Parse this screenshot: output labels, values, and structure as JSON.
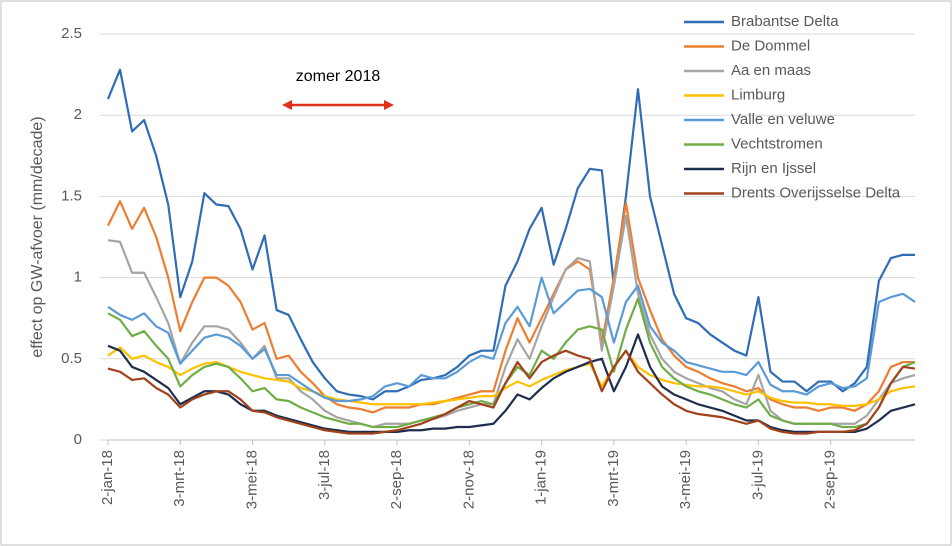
{
  "chart_data": {
    "type": "line",
    "y_label": "effect op GW-afvoer (mm/decade)",
    "annotation": "zomer 2018",
    "ylim": [
      0,
      2.5
    ],
    "yticks": [
      0,
      0.5,
      1,
      1.5,
      2,
      2.5
    ],
    "grid": true,
    "legend": "top-right",
    "categories": [
      "2-jan-18",
      null,
      null,
      null,
      null,
      null,
      "3-mrt-18",
      null,
      null,
      null,
      null,
      null,
      "3-mei-18",
      null,
      null,
      null,
      null,
      null,
      "3-jul-18",
      null,
      null,
      null,
      null,
      null,
      "2-sep-18",
      null,
      null,
      null,
      null,
      null,
      "2-nov-18",
      null,
      null,
      null,
      null,
      null,
      "1-jan-19",
      null,
      null,
      null,
      null,
      null,
      "3-mrt-19",
      null,
      null,
      null,
      null,
      null,
      "3-mei-19",
      null,
      null,
      null,
      null,
      null,
      "3-jul-19",
      null,
      null,
      null,
      null,
      null,
      "2-sep-19",
      null,
      null,
      null,
      null,
      null,
      null,
      null
    ],
    "series": [
      {
        "name": "Brabantse Delta",
        "color": "#2f6db5",
        "values": [
          2.1,
          2.28,
          1.9,
          1.97,
          1.75,
          1.45,
          0.88,
          1.1,
          1.52,
          1.45,
          1.44,
          1.3,
          1.05,
          1.26,
          0.8,
          0.77,
          0.62,
          0.48,
          0.38,
          0.3,
          0.28,
          0.27,
          0.25,
          0.3,
          0.3,
          0.33,
          0.37,
          0.38,
          0.4,
          0.45,
          0.52,
          0.55,
          0.55,
          0.95,
          1.1,
          1.3,
          1.43,
          1.08,
          1.3,
          1.55,
          1.67,
          1.66,
          0.95,
          1.5,
          2.16,
          1.5,
          1.2,
          0.9,
          0.75,
          0.72,
          0.65,
          0.6,
          0.55,
          0.52,
          0.88,
          0.42,
          0.36,
          0.36,
          0.3,
          0.36,
          0.36,
          0.3,
          0.35,
          0.45,
          0.98,
          1.12,
          1.14,
          1.14
        ]
      },
      {
        "name": "De Dommel",
        "color": "#ed7d31",
        "values": [
          1.32,
          1.47,
          1.3,
          1.43,
          1.25,
          1.0,
          0.67,
          0.85,
          1.0,
          1.0,
          0.95,
          0.85,
          0.68,
          0.72,
          0.5,
          0.52,
          0.42,
          0.35,
          0.27,
          0.22,
          0.2,
          0.19,
          0.17,
          0.2,
          0.2,
          0.2,
          0.22,
          0.22,
          0.24,
          0.26,
          0.28,
          0.3,
          0.3,
          0.55,
          0.75,
          0.6,
          0.75,
          0.9,
          1.05,
          1.1,
          1.05,
          0.6,
          1.0,
          1.46,
          1.0,
          0.8,
          0.62,
          0.52,
          0.45,
          0.42,
          0.38,
          0.35,
          0.33,
          0.3,
          0.32,
          0.25,
          0.22,
          0.2,
          0.2,
          0.18,
          0.2,
          0.2,
          0.18,
          0.22,
          0.3,
          0.45,
          0.48,
          0.48
        ]
      },
      {
        "name": "Aa en maas",
        "color": "#a5a5a5",
        "values": [
          1.23,
          1.22,
          1.03,
          1.03,
          0.88,
          0.72,
          0.47,
          0.6,
          0.7,
          0.7,
          0.68,
          0.6,
          0.5,
          0.58,
          0.38,
          0.38,
          0.3,
          0.25,
          0.18,
          0.14,
          0.12,
          0.1,
          0.08,
          0.1,
          0.1,
          0.1,
          0.12,
          0.13,
          0.15,
          0.18,
          0.2,
          0.22,
          0.22,
          0.45,
          0.62,
          0.5,
          0.7,
          0.88,
          1.05,
          1.12,
          1.1,
          0.55,
          0.95,
          1.38,
          0.9,
          0.65,
          0.5,
          0.42,
          0.38,
          0.35,
          0.32,
          0.3,
          0.25,
          0.22,
          0.4,
          0.18,
          0.12,
          0.1,
          0.1,
          0.1,
          0.1,
          0.1,
          0.1,
          0.15,
          0.25,
          0.35,
          0.38,
          0.4
        ]
      },
      {
        "name": "Limburg",
        "color": "#ffc000",
        "values": [
          0.52,
          0.57,
          0.5,
          0.52,
          0.48,
          0.45,
          0.4,
          0.44,
          0.47,
          0.48,
          0.45,
          0.42,
          0.4,
          0.38,
          0.37,
          0.36,
          0.32,
          0.3,
          0.27,
          0.25,
          0.24,
          0.23,
          0.22,
          0.22,
          0.22,
          0.22,
          0.22,
          0.23,
          0.24,
          0.25,
          0.26,
          0.27,
          0.27,
          0.32,
          0.36,
          0.33,
          0.37,
          0.4,
          0.43,
          0.45,
          0.47,
          0.33,
          0.45,
          0.55,
          0.45,
          0.4,
          0.37,
          0.35,
          0.34,
          0.33,
          0.33,
          0.32,
          0.3,
          0.28,
          0.3,
          0.26,
          0.24,
          0.23,
          0.23,
          0.22,
          0.22,
          0.21,
          0.21,
          0.22,
          0.25,
          0.3,
          0.32,
          0.33
        ]
      },
      {
        "name": "Valle en veluwe",
        "color": "#5b9bd5",
        "values": [
          0.82,
          0.77,
          0.74,
          0.78,
          0.7,
          0.66,
          0.47,
          0.55,
          0.63,
          0.65,
          0.63,
          0.58,
          0.5,
          0.56,
          0.4,
          0.4,
          0.35,
          0.3,
          0.26,
          0.24,
          0.24,
          0.25,
          0.27,
          0.33,
          0.35,
          0.33,
          0.4,
          0.38,
          0.38,
          0.42,
          0.48,
          0.52,
          0.5,
          0.72,
          0.82,
          0.7,
          1.0,
          0.78,
          0.85,
          0.92,
          0.93,
          0.88,
          0.6,
          0.85,
          0.95,
          0.7,
          0.6,
          0.55,
          0.48,
          0.46,
          0.44,
          0.42,
          0.42,
          0.4,
          0.48,
          0.34,
          0.3,
          0.3,
          0.28,
          0.33,
          0.35,
          0.32,
          0.33,
          0.38,
          0.85,
          0.88,
          0.9,
          0.85
        ]
      },
      {
        "name": "Vechtstromen",
        "color": "#70ad47",
        "values": [
          0.78,
          0.74,
          0.64,
          0.67,
          0.58,
          0.5,
          0.33,
          0.4,
          0.45,
          0.47,
          0.45,
          0.38,
          0.3,
          0.32,
          0.25,
          0.24,
          0.2,
          0.17,
          0.14,
          0.12,
          0.1,
          0.1,
          0.08,
          0.08,
          0.08,
          0.1,
          0.12,
          0.14,
          0.16,
          0.2,
          0.22,
          0.24,
          0.22,
          0.35,
          0.45,
          0.4,
          0.55,
          0.5,
          0.6,
          0.68,
          0.7,
          0.68,
          0.42,
          0.68,
          0.87,
          0.6,
          0.45,
          0.38,
          0.33,
          0.3,
          0.28,
          0.25,
          0.22,
          0.2,
          0.25,
          0.15,
          0.12,
          0.1,
          0.1,
          0.1,
          0.1,
          0.08,
          0.08,
          0.1,
          0.2,
          0.35,
          0.45,
          0.48
        ]
      },
      {
        "name": "Rijn en Ijssel",
        "color": "#1f2d4e",
        "values": [
          0.58,
          0.55,
          0.45,
          0.42,
          0.37,
          0.32,
          0.22,
          0.26,
          0.3,
          0.3,
          0.28,
          0.22,
          0.18,
          0.18,
          0.15,
          0.13,
          0.11,
          0.09,
          0.07,
          0.06,
          0.05,
          0.05,
          0.05,
          0.05,
          0.05,
          0.06,
          0.06,
          0.07,
          0.07,
          0.08,
          0.08,
          0.09,
          0.1,
          0.18,
          0.28,
          0.25,
          0.32,
          0.38,
          0.42,
          0.45,
          0.48,
          0.5,
          0.3,
          0.45,
          0.65,
          0.45,
          0.33,
          0.28,
          0.25,
          0.22,
          0.2,
          0.18,
          0.15,
          0.12,
          0.12,
          0.08,
          0.06,
          0.05,
          0.05,
          0.05,
          0.05,
          0.05,
          0.05,
          0.07,
          0.12,
          0.18,
          0.2,
          0.22
        ]
      },
      {
        "name": "Drents Overijsselse Delta",
        "color": "#a0421b",
        "values": [
          0.44,
          0.42,
          0.37,
          0.38,
          0.32,
          0.28,
          0.2,
          0.25,
          0.28,
          0.3,
          0.3,
          0.25,
          0.18,
          0.17,
          0.14,
          0.12,
          0.1,
          0.08,
          0.06,
          0.05,
          0.04,
          0.04,
          0.04,
          0.05,
          0.06,
          0.08,
          0.1,
          0.13,
          0.16,
          0.2,
          0.24,
          0.22,
          0.2,
          0.35,
          0.48,
          0.38,
          0.48,
          0.52,
          0.55,
          0.52,
          0.5,
          0.3,
          0.45,
          0.55,
          0.42,
          0.35,
          0.28,
          0.22,
          0.18,
          0.16,
          0.15,
          0.14,
          0.12,
          0.1,
          0.12,
          0.07,
          0.05,
          0.04,
          0.04,
          0.05,
          0.05,
          0.05,
          0.06,
          0.1,
          0.2,
          0.35,
          0.45,
          0.44
        ]
      }
    ]
  }
}
